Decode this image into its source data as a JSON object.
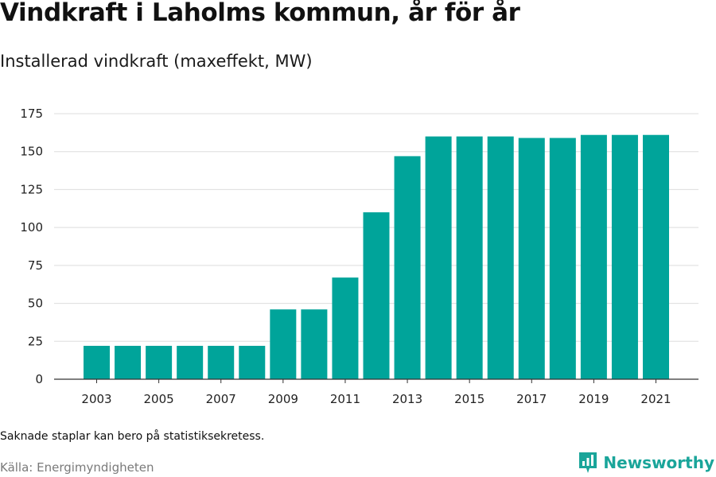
{
  "title": "Vindkraft i Laholms kommun, år för år",
  "subtitle": "Installerad vindkraft (maxeffekt, MW)",
  "note": "Saknade staplar kan bero på statistiksekretess.",
  "source": "Källa: Energimyndigheten",
  "brand": {
    "name": "Newsworthy",
    "color": "#1aa59a",
    "icon": "newsworthy-logo-icon"
  },
  "colors": {
    "bar": "#00a49a",
    "grid": "#dddddd",
    "axis": "#333333"
  },
  "chart_data": {
    "type": "bar",
    "title": "Vindkraft i Laholms kommun, år för år",
    "subtitle": "Installerad vindkraft (maxeffekt, MW)",
    "xlabel": "",
    "ylabel": "",
    "categories": [
      2003,
      2004,
      2005,
      2006,
      2007,
      2008,
      2009,
      2010,
      2011,
      2012,
      2013,
      2014,
      2015,
      2016,
      2017,
      2018,
      2019,
      2020,
      2021
    ],
    "values": [
      22,
      22,
      22,
      22,
      22,
      22,
      46,
      46,
      67,
      110,
      147,
      160,
      160,
      160,
      159,
      159,
      161,
      161,
      161
    ],
    "x_tick_labels": [
      "2003",
      "2005",
      "2007",
      "2009",
      "2011",
      "2013",
      "2015",
      "2017",
      "2019",
      "2021"
    ],
    "y_ticks": [
      0,
      25,
      50,
      75,
      100,
      125,
      150,
      175
    ],
    "ylim": [
      0,
      175
    ],
    "grid": true,
    "legend": "none"
  }
}
